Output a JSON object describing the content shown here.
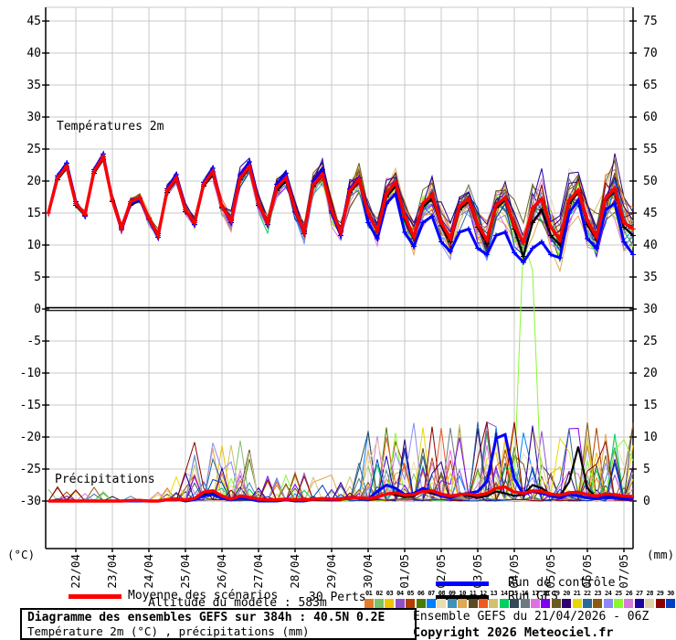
{
  "labels": {
    "temp_section": "Températures 2m",
    "precip_section": "Précipitations",
    "unit_left": "(°C)",
    "unit_right": "(mm)"
  },
  "legend": {
    "mean": {
      "label": "Moyenne des scénarios",
      "color": "#ff0000"
    },
    "control": {
      "label": "Run de contrôle",
      "color": "#0000ff"
    },
    "gfs": {
      "label": "Run GFS",
      "color": "#000000"
    },
    "perts_label": "30 Perts."
  },
  "footer": {
    "altitude": "Altitude du modele : 583m",
    "box_title": "Diagramme des ensembles GEFS sur 384h : 40.5N 0.2E",
    "box_subtitle": "Température 2m (°C) , précipitations (mm)",
    "run_info": "Ensemble GEFS du 21/04/2026 - 06Z",
    "copyright": "Copyright 2026 Meteociel.fr"
  },
  "chart_data": {
    "type": "line",
    "title": "Diagramme des ensembles GEFS sur 384h : 40.5N 0.2E",
    "x_axis": {
      "start": "21/04 06Z",
      "step_hours": 6,
      "points": 65,
      "day_labels": [
        "22/04",
        "23/04",
        "24/04",
        "25/04",
        "26/04",
        "27/04",
        "28/04",
        "29/04",
        "30/04",
        "01/05",
        "02/05",
        "03/05",
        "04/05",
        "05/05",
        "06/05",
        "07/05"
      ]
    },
    "y_left": {
      "unit": "°C",
      "ticks": [
        45,
        40,
        35,
        30,
        25,
        20,
        15,
        10,
        5,
        0,
        -5,
        -10,
        -15,
        -20,
        -25,
        -30
      ],
      "zero_line": 0
    },
    "y_right": {
      "unit": "mm",
      "ticks": [
        75,
        70,
        65,
        60,
        55,
        50,
        45,
        40,
        35,
        30,
        25,
        20,
        15,
        10,
        5,
        0
      ]
    },
    "grid": true,
    "series": [
      {
        "key": "mean",
        "name": "Moyenne des scénarios",
        "color": "#ff0000",
        "width": 3.4,
        "temp": [
          15,
          20.5,
          22.3,
          16.5,
          14.8,
          21.5,
          23.8,
          17,
          12.6,
          16.8,
          17.4,
          14.2,
          11.5,
          18.5,
          20.5,
          15.5,
          13.5,
          19.5,
          21.5,
          16,
          13.8,
          20.5,
          22.3,
          16.5,
          13.5,
          19,
          20.5,
          15.5,
          12,
          19.5,
          21,
          15.5,
          12,
          18.5,
          20.3,
          15,
          12.2,
          18,
          19.8,
          14.5,
          11.3,
          16.5,
          17.8,
          13.5,
          11,
          16,
          17.2,
          13.2,
          10.8,
          16.2,
          17.4,
          13,
          10.4,
          15.8,
          17.2,
          12.8,
          10.8,
          17,
          18.5,
          13.8,
          11.2,
          17.3,
          18.8,
          13.5,
          12.5
        ],
        "precip": [
          0,
          0,
          0,
          0,
          0,
          0,
          0,
          0,
          0,
          0.1,
          0.1,
          0,
          0,
          0.2,
          0.3,
          0.2,
          0.4,
          1.4,
          1.6,
          0.8,
          0.3,
          0.8,
          0.6,
          0.3,
          0.2,
          0.2,
          0.3,
          0.2,
          0.2,
          0.3,
          0.4,
          0.3,
          0.3,
          0.5,
          0.5,
          0.4,
          0.6,
          1.1,
          1.3,
          0.9,
          1,
          1.5,
          1.6,
          1.1,
          0.8,
          1,
          1.1,
          0.9,
          1.2,
          2,
          2.2,
          1.4,
          1.2,
          1.6,
          1.5,
          1.1,
          0.9,
          1.3,
          1.4,
          1,
          0.8,
          1.1,
          1,
          0.8,
          0.7
        ]
      },
      {
        "key": "control",
        "name": "Run de contrôle",
        "color": "#0000ff",
        "width": 3,
        "temp": [
          15,
          20.8,
          22.8,
          16.8,
          14.5,
          21.8,
          24.2,
          17,
          12.4,
          16.5,
          17.2,
          14,
          11.2,
          18.8,
          21,
          15.5,
          13.2,
          19.8,
          22,
          16,
          13.5,
          21,
          23,
          16.5,
          13.2,
          19.5,
          21.2,
          15.2,
          11.8,
          20,
          21.8,
          15,
          11.5,
          18.8,
          20.5,
          13.5,
          11,
          16.5,
          18,
          12,
          9.8,
          13.5,
          14.5,
          10.5,
          9,
          12,
          12.5,
          9.5,
          8.5,
          11.5,
          12,
          8.8,
          7.3,
          9.5,
          10.5,
          8.5,
          8,
          15,
          17,
          11,
          9.5,
          15.5,
          16.5,
          10.5,
          8.5
        ],
        "precip": [
          0,
          0,
          0,
          0,
          0,
          0,
          0,
          0,
          0,
          0,
          0,
          0,
          0,
          0.2,
          0.3,
          0,
          0.2,
          0.8,
          1,
          0.4,
          0.2,
          0.5,
          0.3,
          0,
          0,
          0,
          0.2,
          0,
          0,
          0.3,
          0.4,
          0.2,
          0.3,
          0.6,
          0.5,
          0.3,
          1.5,
          2.5,
          2,
          1,
          1.2,
          2,
          1.5,
          0.8,
          0.5,
          1,
          1.2,
          1.5,
          3,
          9.8,
          10.4,
          3.5,
          1,
          1.5,
          1.2,
          0.8,
          0.5,
          1,
          0.8,
          0.5,
          0.4,
          0.6,
          0.5,
          0.3,
          0.3
        ]
      },
      {
        "key": "gfs",
        "name": "Run GFS",
        "color": "#000000",
        "width": 2.2,
        "temp": [
          15,
          20.2,
          22,
          16.2,
          14.6,
          21.2,
          23.4,
          16.8,
          12.8,
          16.2,
          17,
          14,
          11.8,
          18.2,
          20.2,
          15.2,
          13.8,
          19.2,
          21,
          15.8,
          14,
          20.2,
          22,
          16.2,
          13.8,
          18.5,
          20,
          15.2,
          12.2,
          19.2,
          20.8,
          15.3,
          12.2,
          18.2,
          20,
          14.8,
          12,
          17.5,
          19.2,
          14,
          11,
          16,
          17.2,
          13,
          10.5,
          15.5,
          16.8,
          12.8,
          10.2,
          15.8,
          17,
          12.5,
          8.2,
          13.5,
          15.5,
          11.5,
          10,
          16.5,
          18.2,
          13.2,
          10.8,
          17,
          18.4,
          12.8,
          11.5
        ],
        "precip": [
          0,
          0,
          0,
          0,
          0,
          0,
          0,
          0,
          0,
          0.1,
          0,
          0,
          0,
          0.3,
          0.4,
          0.2,
          0.3,
          1,
          1.2,
          0.5,
          0.2,
          0.4,
          0.3,
          0,
          0,
          0.2,
          0.2,
          0,
          0,
          0.2,
          0.3,
          0.2,
          0.2,
          0.4,
          0.4,
          0.3,
          0.5,
          1.2,
          1,
          0.6,
          0.8,
          1.5,
          1.2,
          0.7,
          0.6,
          1,
          0.8,
          0.5,
          0.8,
          1.5,
          1.2,
          0.8,
          1,
          2.5,
          2,
          1,
          0.8,
          3,
          8.5,
          2,
          0.5,
          0.8,
          0.6,
          0.4,
          0.3
        ]
      }
    ],
    "ensemble": {
      "label": "30 Perts.",
      "count": 30,
      "seed": 42,
      "temp_spread": {
        "base": 0.6,
        "growth": 4.4,
        "exp": 1.4
      },
      "precip_activity_segments": [
        [
          0,
          13,
          0.02
        ],
        [
          14,
          15,
          0.2
        ],
        [
          16,
          22,
          0.6
        ],
        [
          23,
          33,
          0.2
        ],
        [
          34,
          64,
          0.8
        ]
      ],
      "precip_overrides": {
        "24": {
          "52": 41,
          "53": 36
        }
      },
      "members": [
        {
          "id": "01",
          "color": "#e67c2a"
        },
        {
          "id": "02",
          "color": "#7cc26a"
        },
        {
          "id": "03",
          "color": "#f0c400"
        },
        {
          "id": "04",
          "color": "#9050c8"
        },
        {
          "id": "05",
          "color": "#b04000"
        },
        {
          "id": "06",
          "color": "#4a7a00"
        },
        {
          "id": "07",
          "color": "#0080ff"
        },
        {
          "id": "08",
          "color": "#e8ddb0"
        },
        {
          "id": "09",
          "color": "#4090b8"
        },
        {
          "id": "10",
          "color": "#e0a850"
        },
        {
          "id": "11",
          "color": "#5a4a20"
        },
        {
          "id": "12",
          "color": "#f05820"
        },
        {
          "id": "13",
          "color": "#d0c070"
        },
        {
          "id": "14",
          "color": "#00d060"
        },
        {
          "id": "15",
          "color": "#344a5a"
        },
        {
          "id": "16",
          "color": "#6a7a80"
        },
        {
          "id": "17",
          "color": "#e070e0"
        },
        {
          "id": "18",
          "color": "#8000f0"
        },
        {
          "id": "19",
          "color": "#6a5a20"
        },
        {
          "id": "20",
          "color": "#300070"
        },
        {
          "id": "21",
          "color": "#e8d800"
        },
        {
          "id": "22",
          "color": "#2a6a9a"
        },
        {
          "id": "23",
          "color": "#8a5a10"
        },
        {
          "id": "24",
          "color": "#8a8af8"
        },
        {
          "id": "25",
          "color": "#8af830"
        },
        {
          "id": "26",
          "color": "#d878d8"
        },
        {
          "id": "27",
          "color": "#2000a0"
        },
        {
          "id": "28",
          "color": "#e0d0a8"
        },
        {
          "id": "29",
          "color": "#8a0000"
        },
        {
          "id": "30",
          "color": "#0040c0"
        }
      ]
    }
  }
}
